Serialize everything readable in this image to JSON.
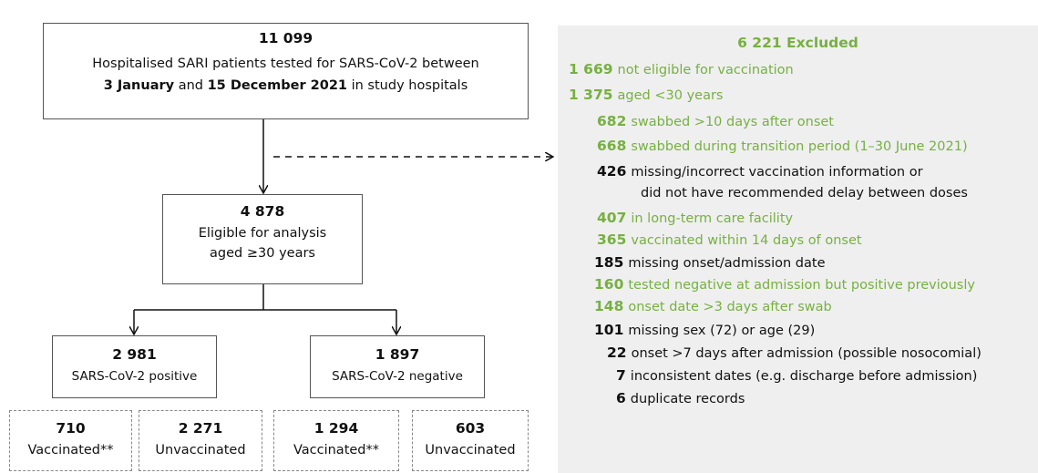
{
  "top": {
    "count": "11 099",
    "line1": "Hospitalised SARI patients tested for SARS-CoV-2 between",
    "line2": [
      "3 January",
      " and ",
      "15 December 2021",
      " in study hospitals"
    ]
  },
  "eligible": {
    "count": "4 878",
    "line1": "Eligible for analysis",
    "line2": "aged ≥30 years"
  },
  "positive": {
    "count": "2 981",
    "label": "SARS-CoV-2 positive"
  },
  "negative": {
    "count": "1 897",
    "label": "SARS-CoV-2 negative"
  },
  "leaves": [
    {
      "count": "710",
      "label": "Vaccinated**"
    },
    {
      "count": "2 271",
      "label": "Unvaccinated"
    },
    {
      "count": "1 294",
      "label": "Vaccinated**"
    },
    {
      "count": "603",
      "label": "Unvaccinated"
    }
  ],
  "excluded": {
    "title": "6 221 Excluded",
    "color": "#77b041",
    "items": [
      {
        "number": "1 669",
        "text": "not eligible for vaccination",
        "color": "#77b041"
      },
      {
        "number": "1 375",
        "text": "aged <30 years",
        "color": "#77b041"
      },
      {
        "number": "682",
        "text": "swabbed >10 days after onset",
        "color": "#77b041"
      },
      {
        "number": "668",
        "text": "swabbed during transition period (1–30 June 2021)",
        "color": "#77b041"
      },
      {
        "number": "426",
        "text": "missing/incorrect vaccination information or",
        "text_continued": "did not have recommended delay between doses",
        "color": "#111111"
      },
      {
        "number": "407",
        "text": "in long-term care facility",
        "color": "#77b041"
      },
      {
        "number": "365",
        "text": "vaccinated within 14 days of onset",
        "color": "#77b041"
      },
      {
        "number": "185",
        "text": "missing onset/admission date",
        "color": "#111111"
      },
      {
        "number": "160",
        "text": "tested negative at admission but positive previously",
        "color": "#77b041"
      },
      {
        "number": "148",
        "text": "onset date >3 days after swab",
        "color": "#77b041"
      },
      {
        "number": "101",
        "text": "missing sex (72) or age (29)",
        "color": "#111111"
      },
      {
        "number": "22",
        "text": "onset >7 days after admission (possible nosocomial)",
        "color": "#111111"
      },
      {
        "number": "7",
        "text": "inconsistent dates (e.g. discharge before admission)",
        "color": "#111111"
      },
      {
        "number": "6",
        "text": "duplicate records",
        "color": "#111111"
      }
    ]
  }
}
